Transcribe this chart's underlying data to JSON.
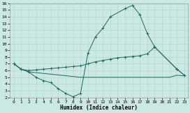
{
  "xlabel": "Humidex (Indice chaleur)",
  "bg_color": "#cce8e4",
  "grid_color": "#b0d8d0",
  "line_color": "#1a6b5e",
  "xlim": [
    -0.5,
    23.5
  ],
  "ylim": [
    2,
    16
  ],
  "xticks": [
    0,
    1,
    2,
    3,
    4,
    5,
    6,
    7,
    8,
    9,
    10,
    11,
    12,
    13,
    14,
    15,
    16,
    17,
    18,
    19,
    20,
    21,
    22,
    23
  ],
  "yticks": [
    2,
    3,
    4,
    5,
    6,
    7,
    8,
    9,
    10,
    11,
    12,
    13,
    14,
    15,
    16
  ],
  "line1_x": [
    0,
    1,
    2,
    3,
    4,
    5,
    6,
    7,
    8,
    9,
    10,
    11,
    12,
    13,
    15,
    16,
    17,
    18,
    19,
    22,
    23
  ],
  "line1_y": [
    7.0,
    6.2,
    5.8,
    5.0,
    4.5,
    4.2,
    3.3,
    2.6,
    2.1,
    2.6,
    8.6,
    11.0,
    12.3,
    14.0,
    15.2,
    15.7,
    14.3,
    11.5,
    9.5,
    6.2,
    5.3
  ],
  "line2_x": [
    0,
    1,
    2,
    3,
    4,
    5,
    6,
    7,
    8,
    9,
    10,
    11,
    12,
    13,
    14,
    15,
    16,
    17,
    18,
    19,
    22,
    23
  ],
  "line2_y": [
    7.0,
    6.2,
    6.0,
    6.1,
    6.2,
    6.3,
    6.4,
    6.5,
    6.6,
    6.7,
    7.0,
    7.3,
    7.5,
    7.7,
    7.9,
    8.0,
    8.1,
    8.2,
    8.5,
    9.5,
    6.2,
    5.3
  ],
  "line3_x": [
    0,
    1,
    2,
    9,
    19,
    21,
    22,
    23
  ],
  "line3_y": [
    7.0,
    6.2,
    5.8,
    5.0,
    5.0,
    5.0,
    5.3,
    5.2
  ]
}
